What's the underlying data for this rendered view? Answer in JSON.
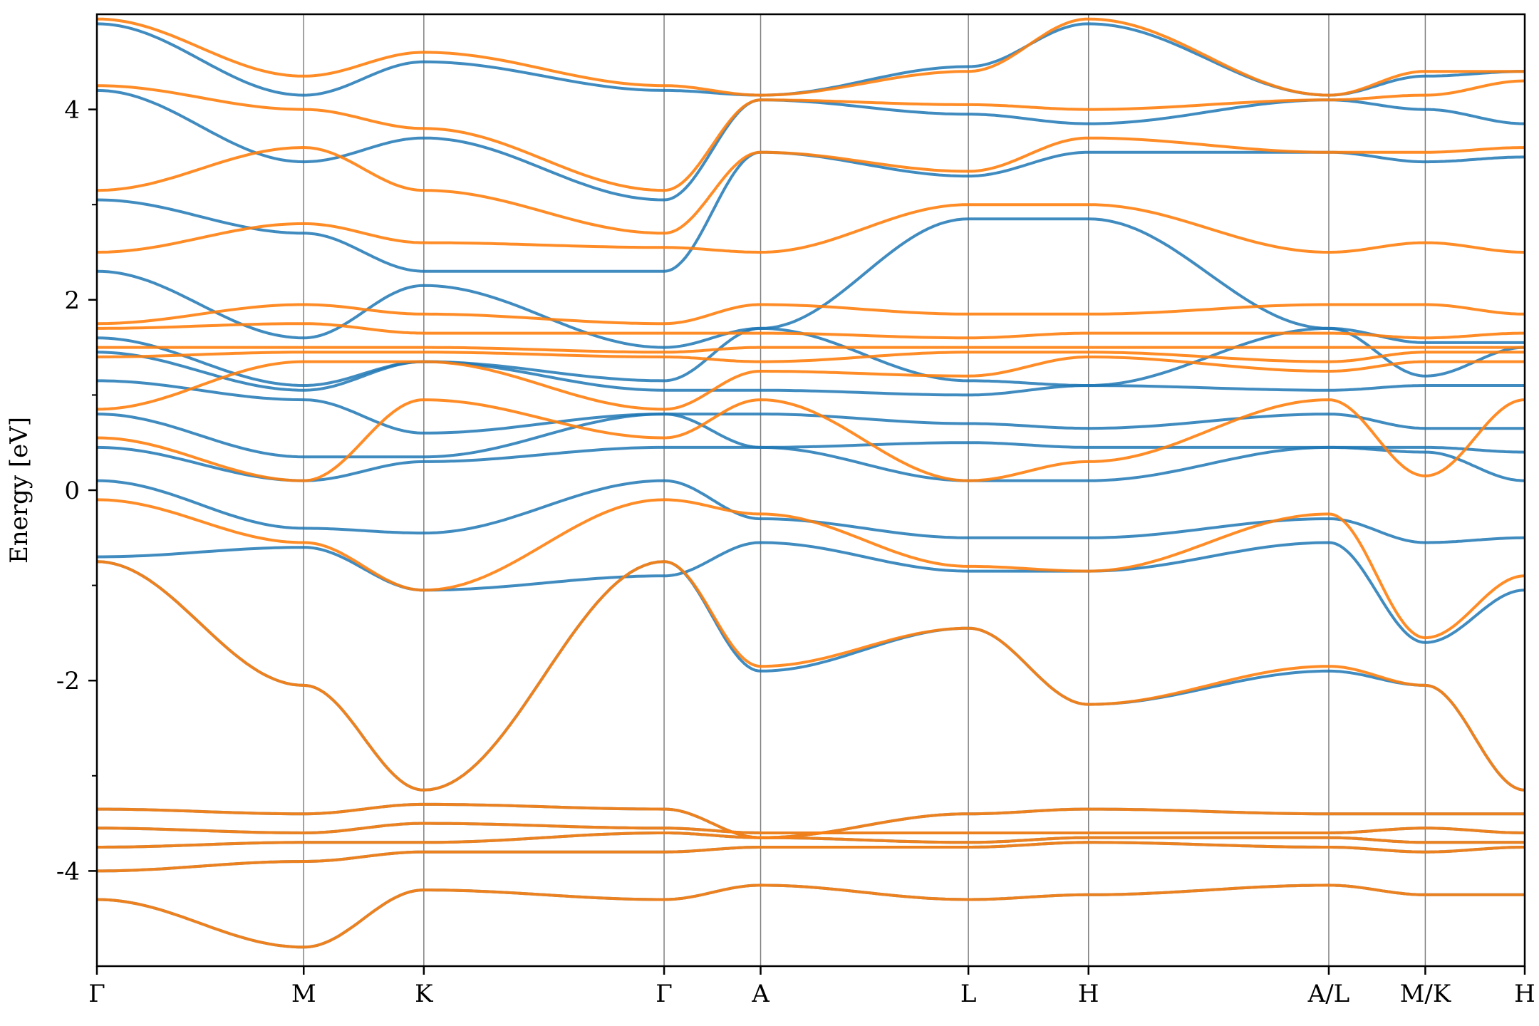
{
  "chart_data": {
    "type": "line",
    "title": "",
    "xlabel": "",
    "ylabel": "Energy [eV]",
    "ylim": [
      -5,
      5
    ],
    "grid": false,
    "legend": "none",
    "yticks": [
      {
        "value": -4,
        "label": "-4"
      },
      {
        "value": -2,
        "label": "-2"
      },
      {
        "value": 0,
        "label": "0"
      },
      {
        "value": 2,
        "label": "2"
      },
      {
        "value": 4,
        "label": "4"
      }
    ],
    "y_minor_ticks": [
      -3,
      -1,
      1,
      3
    ],
    "xlim": [
      0,
      14.5
    ],
    "kpath": [
      {
        "label": "Γ",
        "x": 0.0
      },
      {
        "label": "M",
        "x": 2.1
      },
      {
        "label": "K",
        "x": 3.32
      },
      {
        "label": "Γ",
        "x": 5.76
      },
      {
        "label": "A",
        "x": 6.74
      },
      {
        "label": "L",
        "x": 8.85
      },
      {
        "label": "H",
        "x": 10.07
      },
      {
        "label": "A/L",
        "x": 12.51
      },
      {
        "label": "M/K",
        "x": 13.49
      },
      {
        "label": "H",
        "x": 14.5
      }
    ],
    "colors": {
      "series_1": "#1f77b4",
      "series_2": "#ff7f0e",
      "kline": "#808080"
    },
    "series": [
      {
        "color": "#1f77b4",
        "bands": [
          [
            -4.3,
            -4.8,
            -4.2,
            -4.3,
            -4.15,
            -4.3,
            -4.25,
            -4.15,
            -4.25,
            -4.25
          ],
          [
            -4.0,
            -3.9,
            -3.8,
            -3.8,
            -3.75,
            -3.75,
            -3.7,
            -3.75,
            -3.8,
            -3.75
          ],
          [
            -3.75,
            -3.7,
            -3.7,
            -3.6,
            -3.65,
            -3.7,
            -3.65,
            -3.65,
            -3.7,
            -3.7
          ],
          [
            -3.55,
            -3.6,
            -3.5,
            -3.55,
            -3.6,
            -3.6,
            -3.6,
            -3.6,
            -3.55,
            -3.6
          ],
          [
            -3.35,
            -3.4,
            -3.3,
            -3.35,
            -3.65,
            -3.4,
            -3.35,
            -3.4,
            -3.4,
            -3.4
          ],
          [
            -0.75,
            -2.05,
            -3.15,
            -0.75,
            -1.9,
            -1.45,
            -2.25,
            -1.9,
            -2.05,
            -3.15
          ],
          [
            -0.7,
            -0.6,
            -1.05,
            -0.9,
            -0.55,
            -0.85,
            -0.85,
            -0.55,
            -1.6,
            -1.05
          ],
          [
            0.1,
            -0.4,
            -0.45,
            0.1,
            -0.3,
            -0.5,
            -0.5,
            -0.3,
            -0.55,
            -0.5
          ],
          [
            0.45,
            0.1,
            0.3,
            0.45,
            0.45,
            0.1,
            0.1,
            0.45,
            0.4,
            0.1
          ],
          [
            0.8,
            0.35,
            0.35,
            0.8,
            0.45,
            0.5,
            0.45,
            0.45,
            0.45,
            0.4
          ],
          [
            1.15,
            0.95,
            0.6,
            0.8,
            0.8,
            0.7,
            0.65,
            0.8,
            0.65,
            0.65
          ],
          [
            1.45,
            1.05,
            1.35,
            1.05,
            1.05,
            1.0,
            1.1,
            1.05,
            1.1,
            1.1
          ],
          [
            1.6,
            1.1,
            1.35,
            1.15,
            1.7,
            1.15,
            1.1,
            1.7,
            1.2,
            1.5
          ],
          [
            2.3,
            1.6,
            2.15,
            1.5,
            1.7,
            2.85,
            2.85,
            1.7,
            1.55,
            1.55
          ],
          [
            3.05,
            2.7,
            2.3,
            2.3,
            3.55,
            3.3,
            3.55,
            3.55,
            3.45,
            3.5
          ],
          [
            4.2,
            3.45,
            3.7,
            3.05,
            4.1,
            3.95,
            3.85,
            4.1,
            4.0,
            3.85
          ],
          [
            4.9,
            4.15,
            4.5,
            4.2,
            4.15,
            4.45,
            4.9,
            4.15,
            4.35,
            4.4
          ]
        ]
      },
      {
        "color": "#ff7f0e",
        "bands": [
          [
            -4.3,
            -4.8,
            -4.2,
            -4.3,
            -4.15,
            -4.3,
            -4.25,
            -4.15,
            -4.25,
            -4.25
          ],
          [
            -4.0,
            -3.9,
            -3.8,
            -3.8,
            -3.75,
            -3.75,
            -3.7,
            -3.75,
            -3.8,
            -3.75
          ],
          [
            -3.75,
            -3.7,
            -3.7,
            -3.6,
            -3.65,
            -3.7,
            -3.65,
            -3.65,
            -3.7,
            -3.7
          ],
          [
            -3.55,
            -3.6,
            -3.5,
            -3.55,
            -3.6,
            -3.6,
            -3.6,
            -3.6,
            -3.55,
            -3.6
          ],
          [
            -3.35,
            -3.4,
            -3.3,
            -3.35,
            -3.65,
            -3.4,
            -3.35,
            -3.4,
            -3.4,
            -3.4
          ],
          [
            -0.75,
            -2.05,
            -3.15,
            -0.75,
            -1.85,
            -1.45,
            -2.25,
            -1.85,
            -2.05,
            -3.15
          ],
          [
            -0.1,
            -0.55,
            -1.05,
            -0.1,
            -0.25,
            -0.8,
            -0.85,
            -0.25,
            -1.55,
            -0.9
          ],
          [
            0.55,
            0.1,
            0.95,
            0.55,
            0.95,
            0.1,
            0.3,
            0.95,
            0.15,
            0.95
          ],
          [
            0.85,
            1.35,
            1.35,
            0.85,
            1.25,
            1.2,
            1.4,
            1.25,
            1.35,
            1.35
          ],
          [
            1.4,
            1.45,
            1.45,
            1.4,
            1.35,
            1.45,
            1.45,
            1.35,
            1.45,
            1.45
          ],
          [
            1.5,
            1.5,
            1.5,
            1.45,
            1.5,
            1.5,
            1.5,
            1.5,
            1.5,
            1.5
          ],
          [
            1.7,
            1.75,
            1.65,
            1.65,
            1.65,
            1.6,
            1.65,
            1.65,
            1.6,
            1.65
          ],
          [
            1.75,
            1.95,
            1.85,
            1.75,
            1.95,
            1.85,
            1.85,
            1.95,
            1.95,
            1.85
          ],
          [
            2.5,
            2.8,
            2.6,
            2.55,
            2.5,
            3.0,
            3.0,
            2.5,
            2.6,
            2.5
          ],
          [
            3.15,
            3.6,
            3.15,
            2.7,
            3.55,
            3.35,
            3.7,
            3.55,
            3.55,
            3.6
          ],
          [
            4.25,
            4.0,
            3.8,
            3.15,
            4.1,
            4.05,
            4.0,
            4.1,
            4.15,
            4.3
          ],
          [
            4.95,
            4.35,
            4.6,
            4.25,
            4.15,
            4.4,
            4.95,
            4.15,
            4.4,
            4.4
          ]
        ]
      }
    ]
  }
}
